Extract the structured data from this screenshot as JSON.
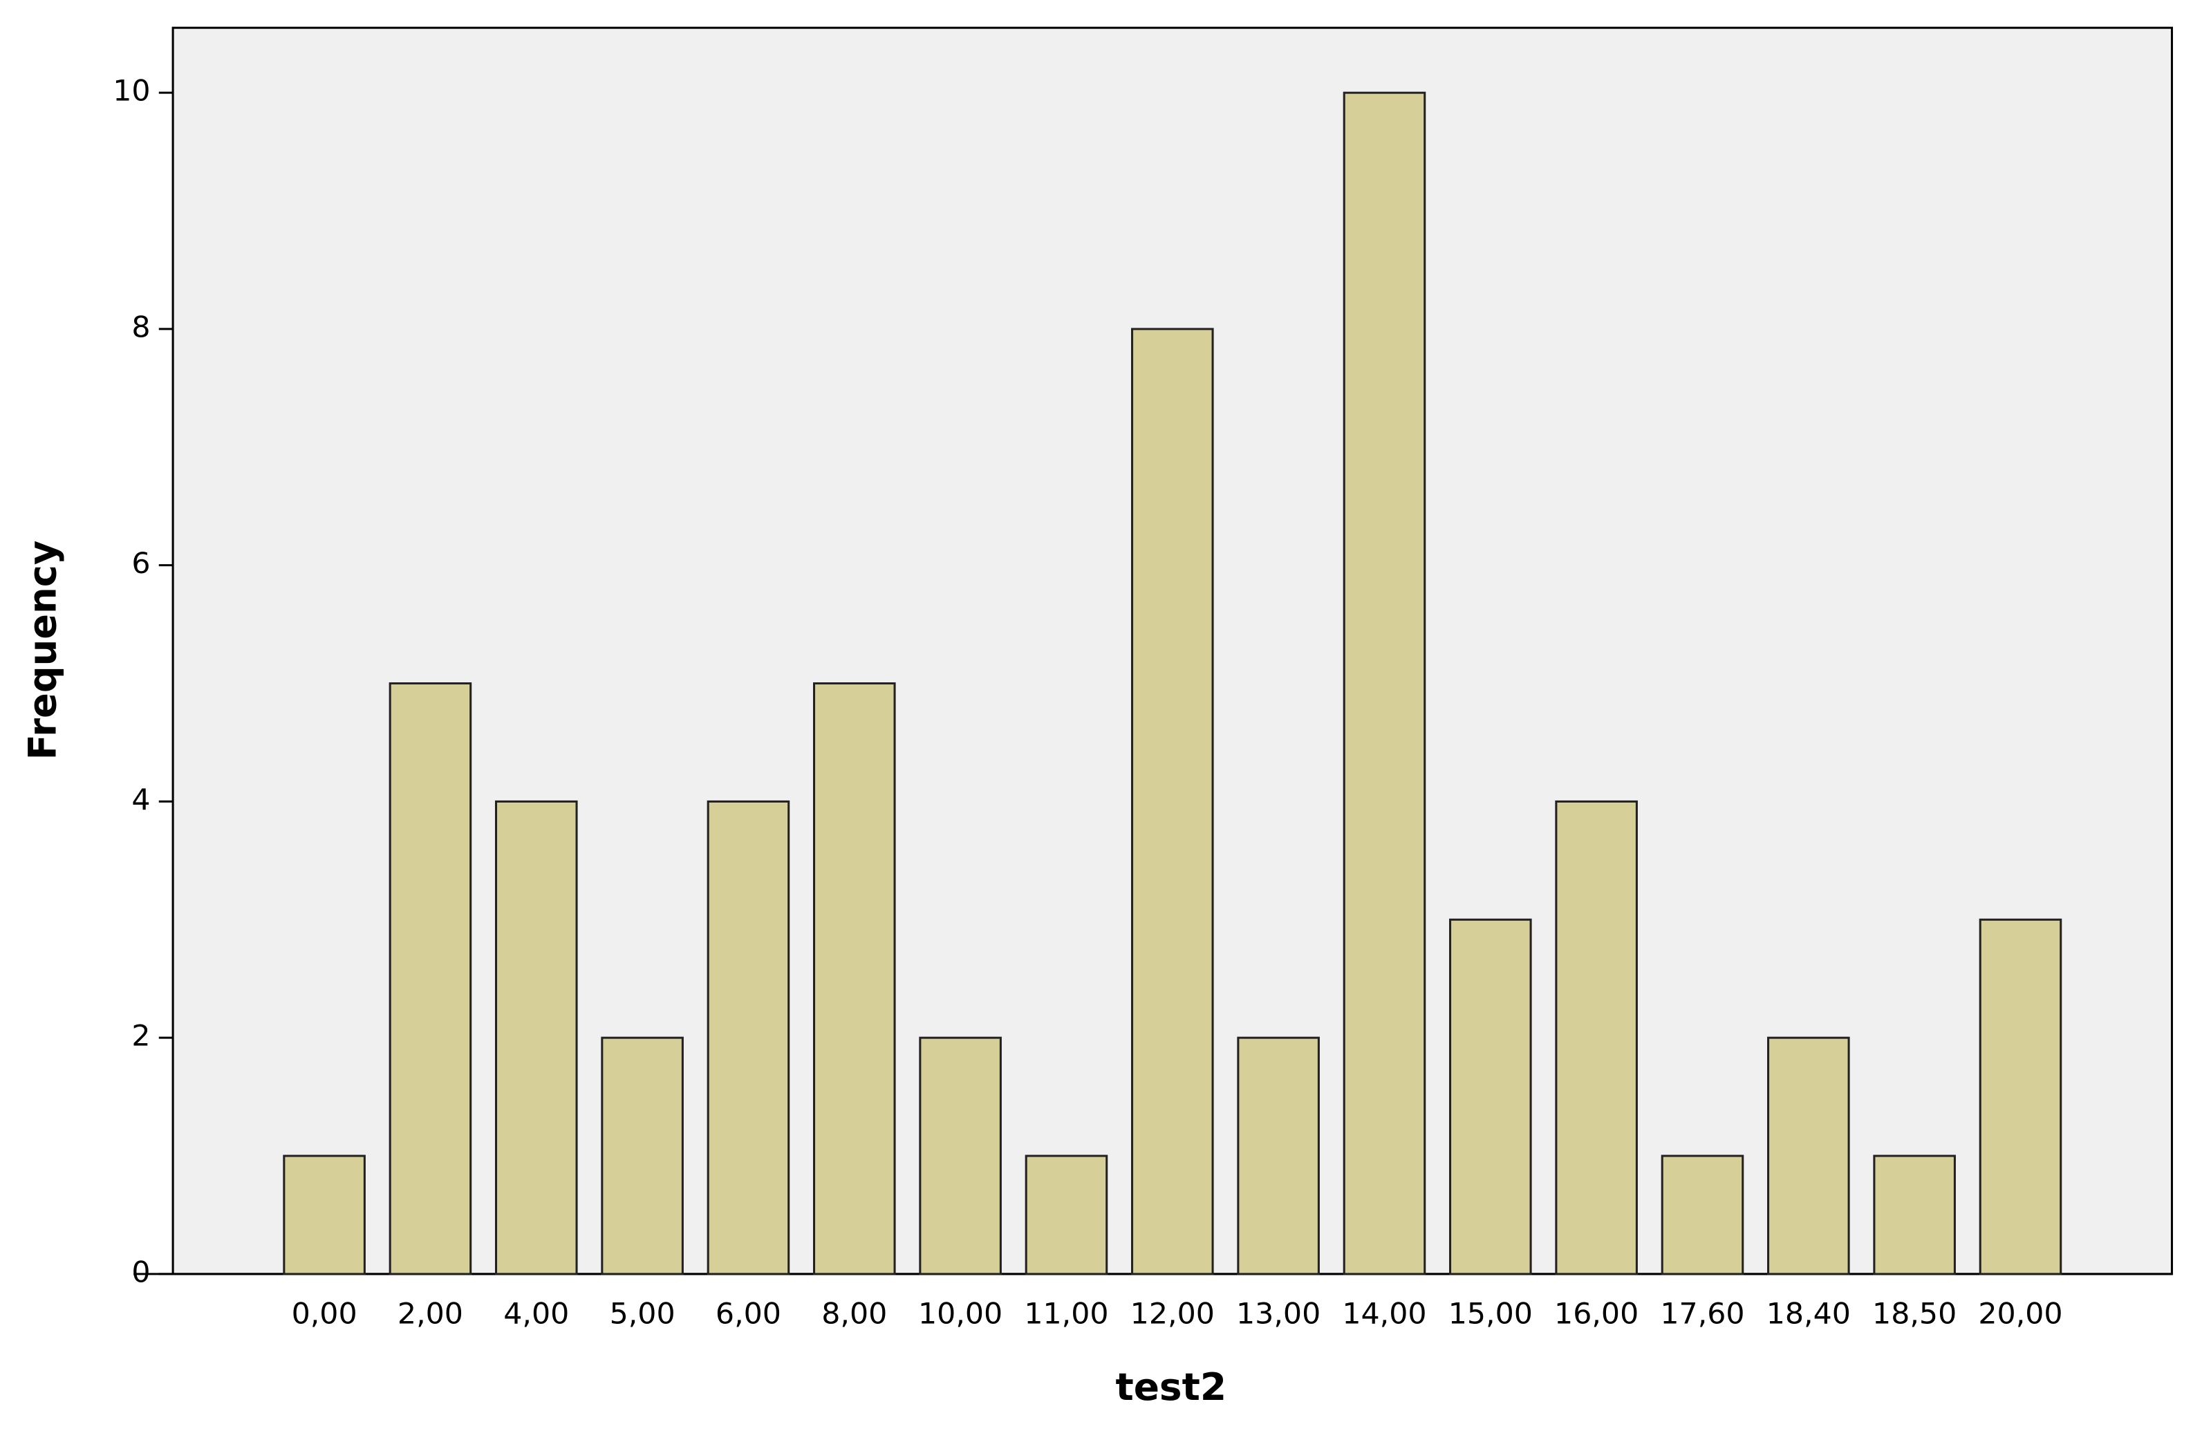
{
  "chart_data": {
    "type": "bar",
    "x_label": "test2",
    "y_label": "Frequency",
    "categories": [
      "0,00",
      "2,00",
      "4,00",
      "5,00",
      "6,00",
      "8,00",
      "10,00",
      "11,00",
      "12,00",
      "13,00",
      "14,00",
      "15,00",
      "16,00",
      "17,60",
      "18,40",
      "18,50",
      "20,00"
    ],
    "values": [
      1,
      5,
      4,
      2,
      4,
      5,
      2,
      1,
      8,
      2,
      10,
      3,
      4,
      1,
      2,
      1,
      3
    ],
    "color": "#d6d098",
    "ylim": [
      0,
      10.55
    ],
    "yticks": [
      0,
      2,
      4,
      6,
      8,
      10
    ],
    "grid": false
  }
}
